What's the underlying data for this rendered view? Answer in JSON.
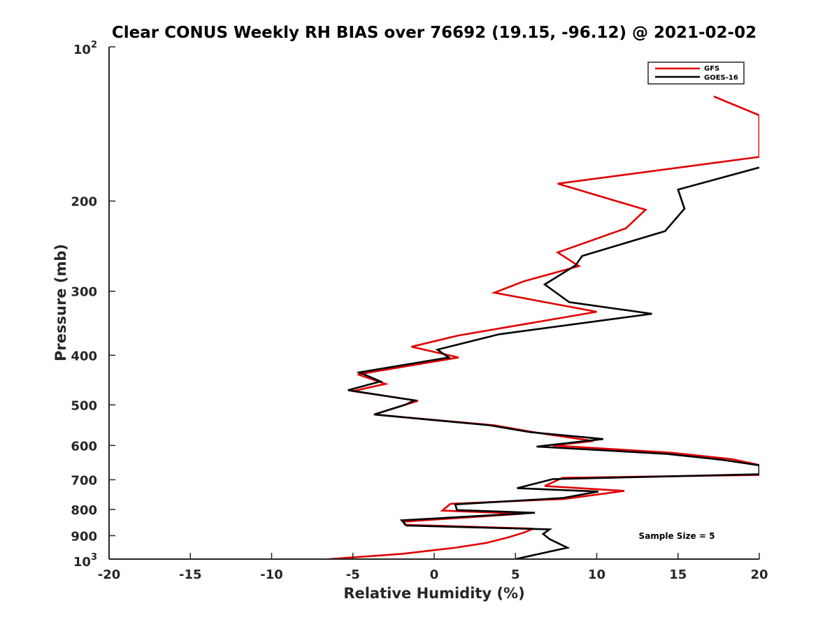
{
  "chart_data": {
    "type": "line",
    "title": "Clear CONUS Weekly RH BIAS over 76692 (19.15, -96.12) @ 2021-02-02",
    "xlabel": "Relative Humidity (%)",
    "ylabel": "Pressure (mb)",
    "xlim": [
      -20,
      20
    ],
    "ylim": [
      100,
      1000
    ],
    "yscale": "log",
    "yreversed": true,
    "x_ticks": [
      "-20",
      "-15",
      "-10",
      "-5",
      "0",
      "5",
      "10",
      "15",
      "20"
    ],
    "y_ticks": [
      "200",
      "300",
      "400",
      "500",
      "600",
      "700",
      "800",
      "900"
    ],
    "y_top_label": {
      "base": "10",
      "exp": "2"
    },
    "y_bottom_label": {
      "base": "10",
      "exp": "3"
    },
    "grid": false,
    "legend_position": "top-right",
    "series": [
      {
        "name": "GFS",
        "color": "#e00000",
        "points": [
          [
            17.2,
            125
          ],
          [
            20,
            136
          ],
          [
            20,
            164
          ],
          [
            7.6,
            185
          ],
          [
            13,
            208
          ],
          [
            11.8,
            226
          ],
          [
            7.6,
            252
          ],
          [
            8.9,
            268
          ],
          [
            5.5,
            287
          ],
          [
            3.7,
            302
          ],
          [
            10,
            329
          ],
          [
            1.5,
            366
          ],
          [
            -1.4,
            385
          ],
          [
            1.5,
            404
          ],
          [
            -4.7,
            436
          ],
          [
            -3,
            455
          ],
          [
            -5,
            470
          ],
          [
            -1,
            491
          ],
          [
            -1.8,
            500
          ],
          [
            -3.7,
            522
          ],
          [
            3.7,
            548
          ],
          [
            6.5,
            568
          ],
          [
            9.8,
            588
          ],
          [
            7.3,
            600
          ],
          [
            14.6,
            620
          ],
          [
            18.3,
            638
          ],
          [
            20,
            655
          ],
          [
            20,
            685
          ],
          [
            7.9,
            694
          ],
          [
            6.8,
            720
          ],
          [
            11.7,
            736
          ],
          [
            8,
            763
          ],
          [
            1,
            780
          ],
          [
            0.5,
            804
          ],
          [
            5.5,
            815
          ],
          [
            -1.9,
            845
          ],
          [
            -1.8,
            857
          ],
          [
            6.1,
            872
          ],
          [
            5.5,
            888
          ],
          [
            4.5,
            908
          ],
          [
            3.2,
            930
          ],
          [
            1.2,
            951
          ],
          [
            -2,
            977
          ],
          [
            -6.5,
            1000
          ]
        ]
      },
      {
        "name": "GOES-16",
        "color": "#000000",
        "points": [
          [
            20,
            172
          ],
          [
            15,
            190
          ],
          [
            15.4,
            207
          ],
          [
            14.2,
            229
          ],
          [
            9.1,
            256
          ],
          [
            8.7,
            267
          ],
          [
            6.8,
            291
          ],
          [
            8.3,
            315
          ],
          [
            13.4,
            332
          ],
          [
            4,
            364
          ],
          [
            0.2,
            390
          ],
          [
            0.9,
            404
          ],
          [
            -4.6,
            432
          ],
          [
            -3.3,
            450
          ],
          [
            -5.3,
            468
          ],
          [
            -1.2,
            490
          ],
          [
            -1.8,
            500
          ],
          [
            -3.7,
            522
          ],
          [
            3.4,
            548
          ],
          [
            5.9,
            565
          ],
          [
            10.4,
            583
          ],
          [
            6.3,
            603
          ],
          [
            14.3,
            623
          ],
          [
            17.7,
            640
          ],
          [
            20,
            656
          ],
          [
            20,
            683
          ],
          [
            7.3,
            698
          ],
          [
            5.1,
            727
          ],
          [
            10.1,
            738
          ],
          [
            7.9,
            760
          ],
          [
            1.3,
            782
          ],
          [
            1.4,
            802
          ],
          [
            6.2,
            812
          ],
          [
            -2,
            840
          ],
          [
            -1.7,
            860
          ],
          [
            7.1,
            875
          ],
          [
            6.7,
            893
          ],
          [
            7.1,
            914
          ],
          [
            8.2,
            950
          ],
          [
            5,
            1000
          ]
        ]
      }
    ],
    "annotations": [
      "Sample Size = 5"
    ]
  }
}
